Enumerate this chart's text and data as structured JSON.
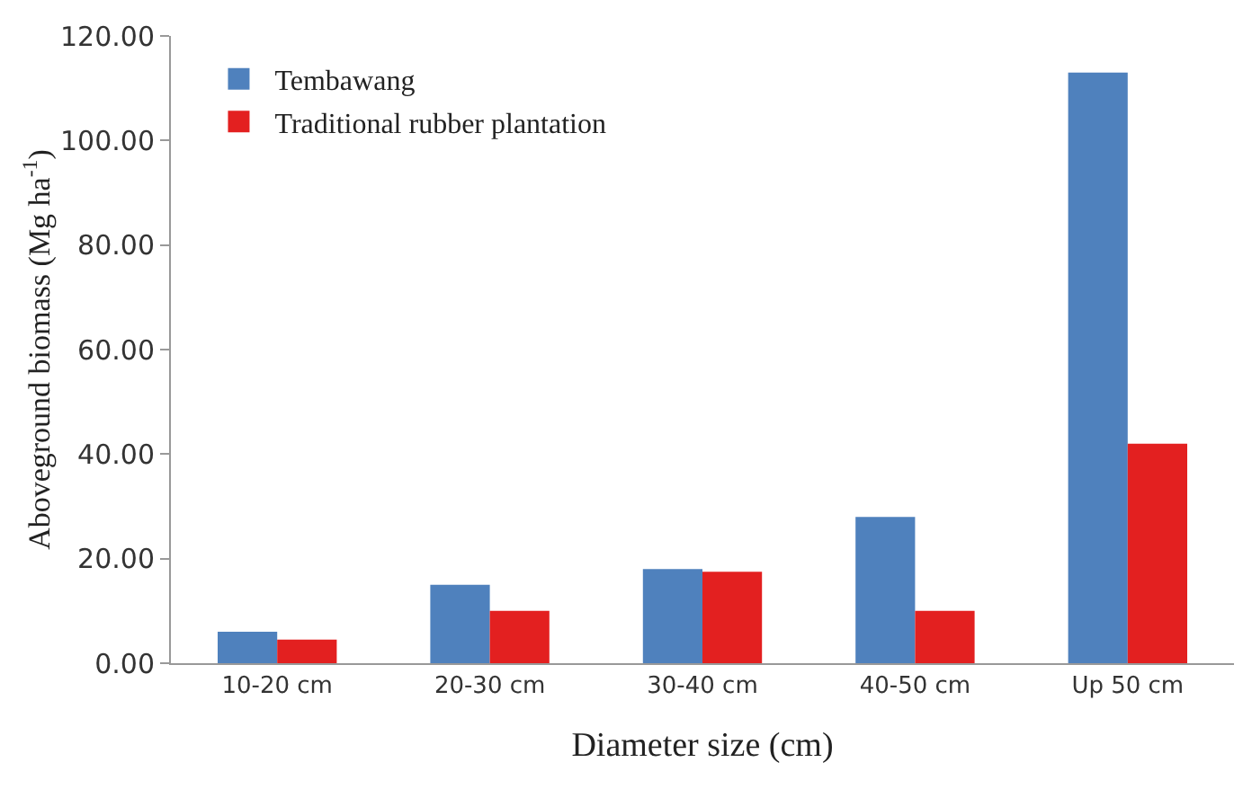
{
  "chart_data": {
    "type": "bar",
    "xlabel": "Diameter size (cm)",
    "ylabel": "Aboveground biomass (Mg ha$^{-1}$)",
    "categories": [
      "10-20 cm",
      "20-30 cm",
      "30-40 cm",
      "40-50 cm",
      "Up 50 cm"
    ],
    "series": [
      {
        "name": "Tembawang",
        "color": "#4f81bd",
        "values": [
          6,
          15,
          18,
          28,
          113
        ]
      },
      {
        "name": "Traditional rubber plantation",
        "color": "#e32020",
        "values": [
          4.5,
          10,
          17.5,
          10,
          42
        ]
      }
    ],
    "ylim": [
      0,
      120
    ],
    "yticks": [
      {
        "value": 0,
        "label": "0.00"
      },
      {
        "value": 20,
        "label": "20.00"
      },
      {
        "value": 40,
        "label": "40.00"
      },
      {
        "value": 60,
        "label": "60.00"
      },
      {
        "value": 80,
        "label": "80.00"
      },
      {
        "value": 100,
        "label": "100.00"
      },
      {
        "value": 120,
        "label": "120.00"
      }
    ],
    "grid": false,
    "legend": "top left"
  }
}
